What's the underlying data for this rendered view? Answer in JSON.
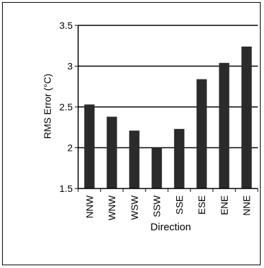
{
  "chart_data": {
    "type": "bar",
    "categories": [
      "NNW",
      "WNW",
      "WSW",
      "SSW",
      "SSE",
      "ESE",
      "ENE",
      "NNE"
    ],
    "values": [
      2.53,
      2.38,
      2.21,
      2.0,
      2.23,
      2.84,
      3.04,
      3.24
    ],
    "xlabel": "Direction",
    "ylabel": "RMS Error (°C)",
    "ylim": [
      1.5,
      3.5
    ],
    "yticks": [
      "1.5",
      "2",
      "2.5",
      "3",
      "3.5"
    ],
    "grid": true,
    "bar_color": "#2b2b2b"
  }
}
